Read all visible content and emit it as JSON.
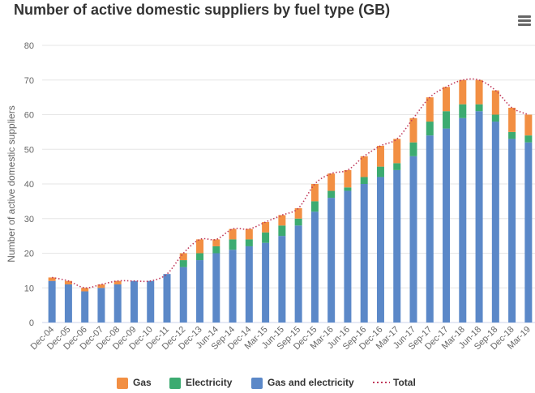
{
  "title": "Number of active domestic suppliers by fuel type (GB)",
  "menu_icon": "hamburger-menu-icon",
  "colors": {
    "gas": "#f28f43",
    "electricity": "#3cab71",
    "gas_and_electricity": "#5b88c8",
    "total": "#c0395a",
    "grid": "#e6e6e6",
    "axis_text": "#666666"
  },
  "chart_data": {
    "type": "bar",
    "stacked": true,
    "title": "Number of active domestic suppliers by fuel type (GB)",
    "xlabel": "",
    "ylabel": "Number of active domestic suppliers",
    "ylim": [
      0,
      80
    ],
    "yticks": [
      0,
      10,
      20,
      30,
      40,
      50,
      60,
      70,
      80
    ],
    "grid": true,
    "legend_position": "bottom",
    "categories": [
      "Dec-04",
      "Dec-05",
      "Dec-06",
      "Dec-07",
      "Dec-08",
      "Dec-09",
      "Dec-10",
      "Dec-11",
      "Dec-12",
      "Dec-13",
      "Jun-14",
      "Sep-14",
      "Dec-14",
      "Mar-15",
      "Jun-15",
      "Sep-15",
      "Dec-15",
      "Mar-16",
      "Jun-16",
      "Sep-16",
      "Dec-16",
      "Mar-17",
      "Jun-17",
      "Sep-17",
      "Dec-17",
      "Mar-18",
      "Jun-18",
      "Sep-18",
      "Dec-18",
      "Mar-19"
    ],
    "series": [
      {
        "name": "Gas and electricity",
        "type": "bar",
        "values": [
          12,
          11,
          9,
          10,
          11,
          12,
          12,
          14,
          16,
          18,
          20,
          21,
          22,
          23,
          25,
          28,
          32,
          36,
          38,
          40,
          42,
          44,
          48,
          54,
          56,
          59,
          61,
          58,
          53,
          52
        ]
      },
      {
        "name": "Electricity",
        "type": "bar",
        "values": [
          0,
          0,
          0,
          0,
          0,
          0,
          0,
          0,
          2,
          2,
          2,
          3,
          2,
          3,
          3,
          2,
          3,
          2,
          1,
          2,
          3,
          2,
          4,
          4,
          5,
          4,
          2,
          2,
          2,
          2
        ]
      },
      {
        "name": "Gas",
        "type": "bar",
        "values": [
          1,
          1,
          1,
          1,
          1,
          0,
          0,
          0,
          2,
          4,
          2,
          3,
          3,
          3,
          3,
          3,
          5,
          5,
          5,
          6,
          6,
          7,
          7,
          7,
          7,
          7,
          7,
          7,
          7,
          6
        ]
      },
      {
        "name": "Total",
        "type": "line",
        "values": [
          13,
          12,
          10,
          11,
          12,
          12,
          12,
          14,
          20,
          24,
          24,
          27,
          27,
          29,
          31,
          33,
          40,
          43,
          44,
          48,
          51,
          53,
          59,
          65,
          68,
          70,
          70,
          67,
          62,
          60
        ]
      }
    ]
  },
  "legend": [
    {
      "label": "Gas",
      "key": "gas",
      "kind": "swatch"
    },
    {
      "label": "Electricity",
      "key": "electricity",
      "kind": "swatch"
    },
    {
      "label": "Gas and electricity",
      "key": "gas_and_electricity",
      "kind": "swatch"
    },
    {
      "label": "Total",
      "key": "total",
      "kind": "line"
    }
  ]
}
